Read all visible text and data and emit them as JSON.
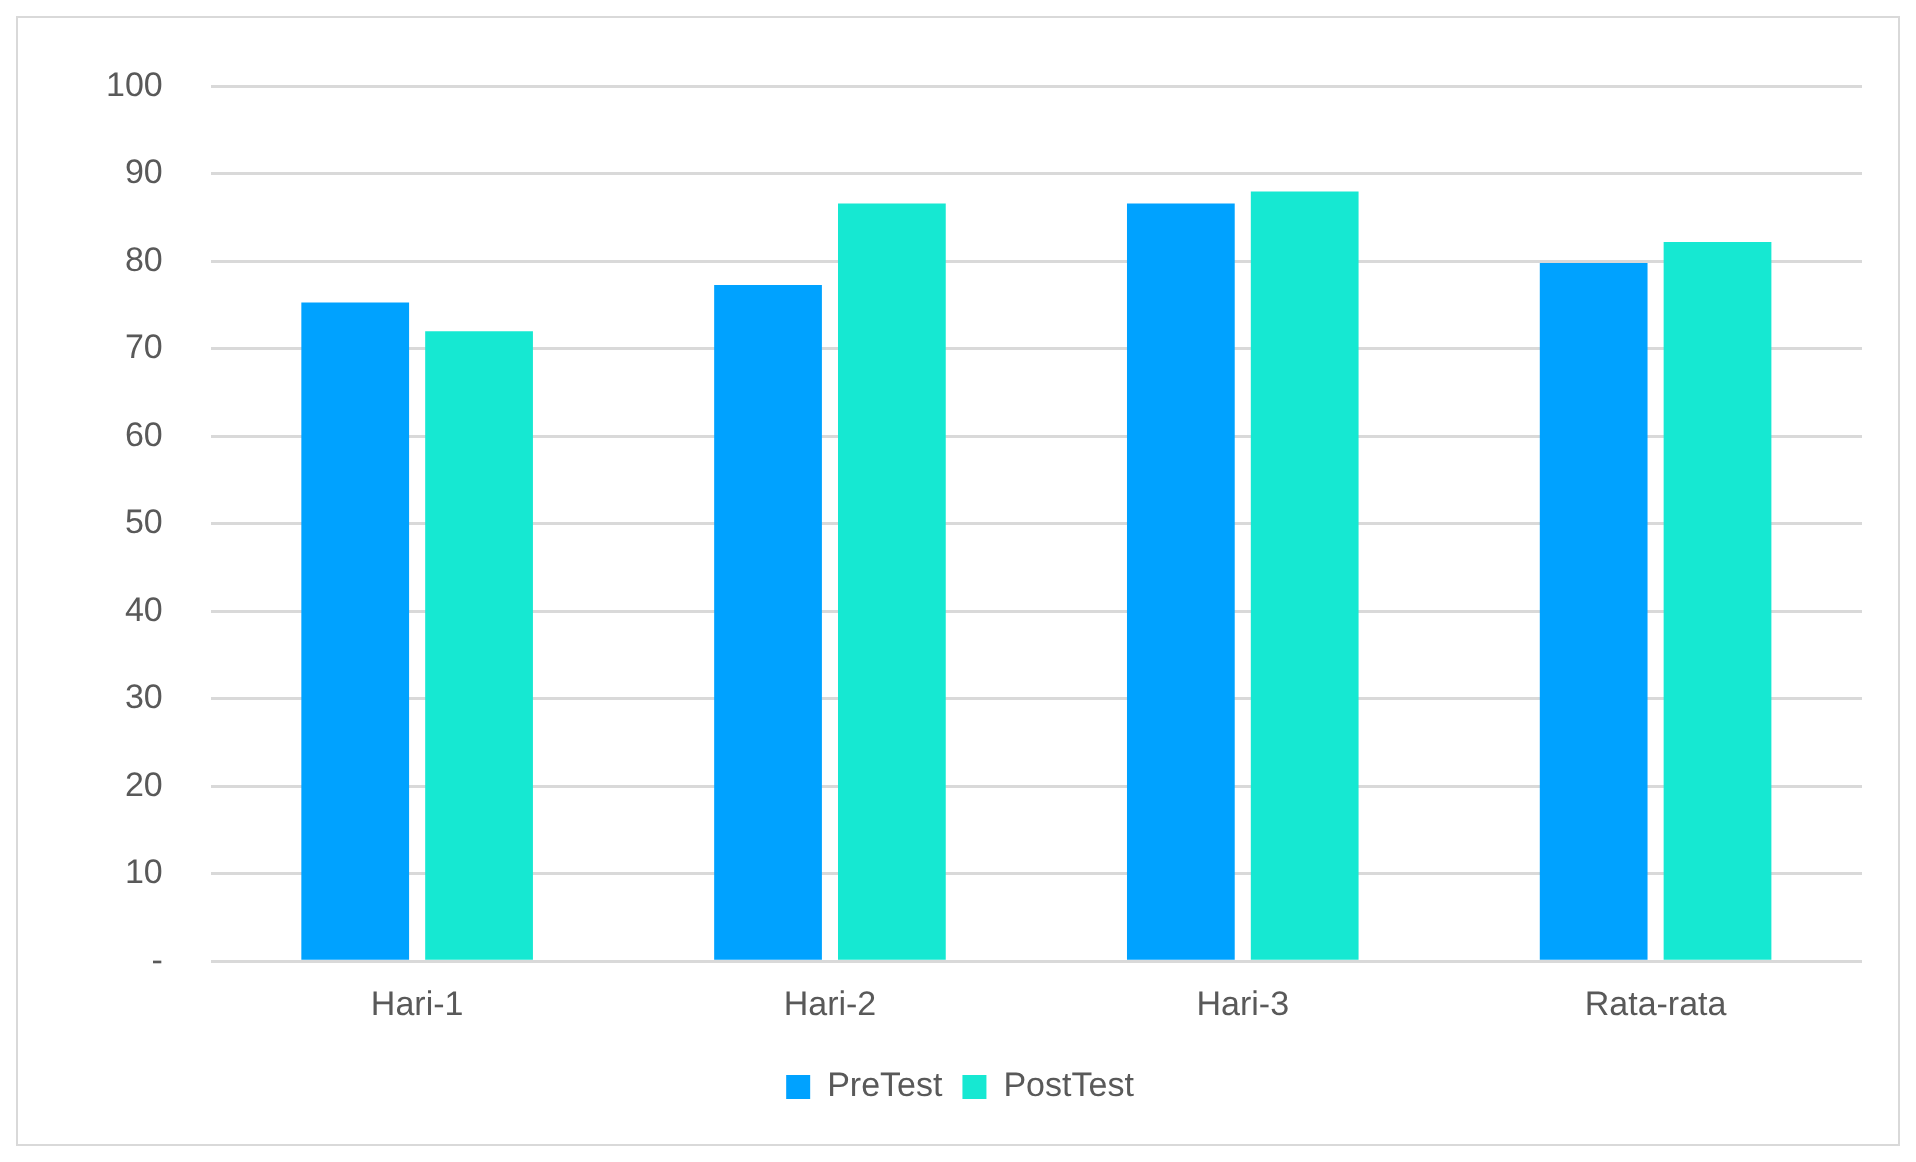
{
  "chart_data": {
    "type": "bar",
    "categories": [
      "Hari-1",
      "Hari-2",
      "Hari-3",
      "Rata-rata"
    ],
    "series": [
      {
        "name": "PreTest",
        "color": "#00a2ff",
        "values": [
          75.3,
          77.3,
          86.6,
          79.8
        ]
      },
      {
        "name": "PostTest",
        "color": "#16e8d2",
        "values": [
          72.0,
          86.6,
          88.0,
          82.2
        ]
      }
    ],
    "ylim": [
      0,
      100
    ],
    "yticks": [
      {
        "value": 0,
        "label": "-"
      },
      10,
      20,
      30,
      40,
      50,
      60,
      70,
      80,
      90,
      100
    ],
    "grid": "y",
    "legend": "bottom"
  }
}
